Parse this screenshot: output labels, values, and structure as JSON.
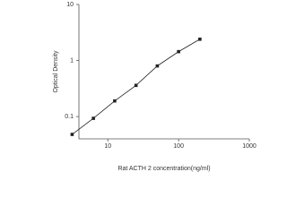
{
  "chart_data": {
    "type": "scatter-line",
    "x_label": "Rat ACTH 2 concentration(ng/ml)",
    "y_label": "Optical Density",
    "x": [
      3.125,
      6.25,
      12.5,
      25,
      50,
      100,
      200
    ],
    "values": [
      0.048,
      0.093,
      0.19,
      0.36,
      0.8,
      1.44,
      2.4
    ],
    "color": "#222222",
    "xscale": "log",
    "yscale": "log",
    "xlim": [
      3.9,
      1000
    ],
    "ylim": [
      0.04,
      10
    ],
    "xticks": [
      10,
      100,
      1000
    ],
    "yticks": [
      0.1,
      1,
      10
    ]
  }
}
